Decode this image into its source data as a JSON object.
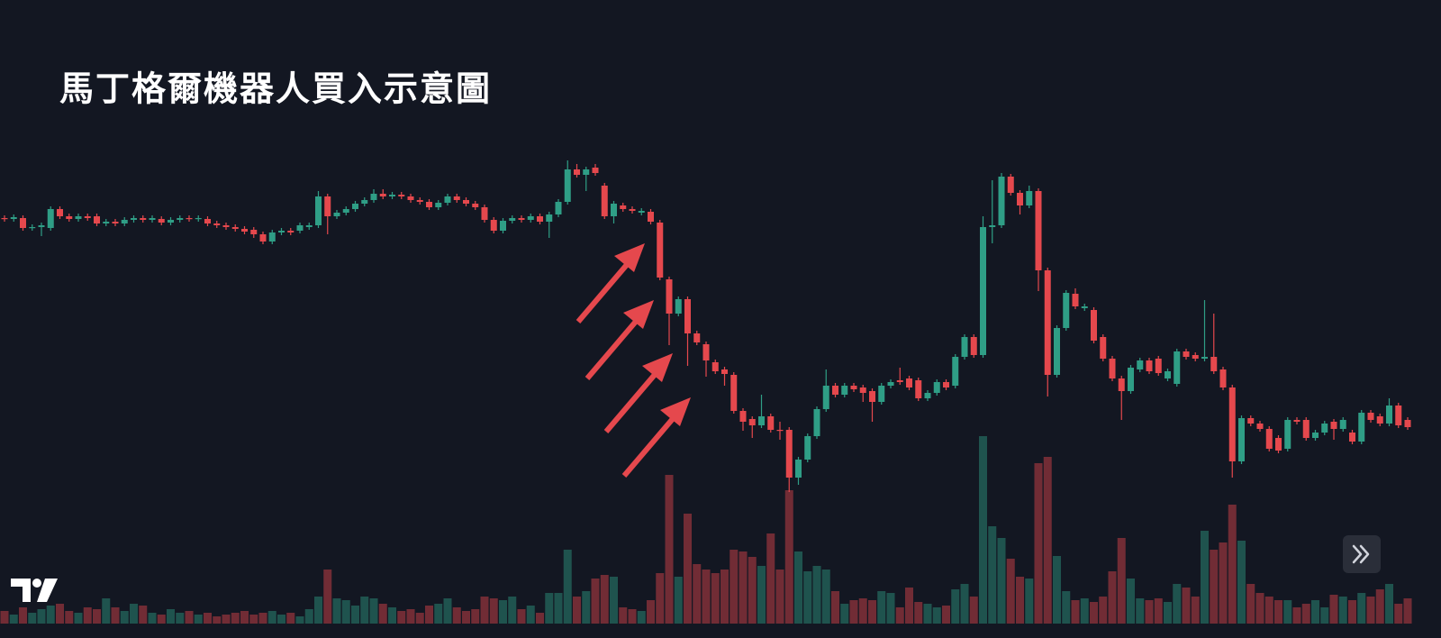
{
  "chart_data": {
    "type": "candlestick",
    "title": "馬丁格爾機器人買入示意圖",
    "up_color": "#2f9e86",
    "down_color": "#e5484d",
    "ylim": [
      0,
      708
    ],
    "y2lim": [
      0,
      250
    ],
    "open": [
      466,
      465,
      466,
      455,
      456,
      455,
      476,
      468,
      465,
      468,
      468,
      460,
      462,
      460,
      464,
      466,
      464,
      465,
      461,
      464,
      466,
      465,
      465,
      460,
      458,
      456,
      454,
      453,
      448,
      440,
      450,
      452,
      452,
      456,
      458,
      490,
      468,
      472,
      476,
      482,
      486,
      493,
      490,
      492,
      490,
      486,
      484,
      478,
      483,
      490,
      486,
      482,
      478,
      464,
      452,
      463,
      466,
      464,
      468,
      462,
      470,
      484,
      520,
      514,
      522,
      502,
      468,
      480,
      476,
      472,
      473,
      461,
      398,
      360,
      376,
      338,
      326,
      306,
      298,
      292,
      252,
      243,
      236,
      246,
      231,
      231,
      178,
      198,
      224,
      254,
      280,
      270,
      280,
      278,
      274,
      262,
      280,
      286,
      288,
      286,
      266,
      272,
      284,
      280,
      312,
      334,
      314,
      456,
      458,
      512,
      494,
      480,
      496,
      408,
      292,
      344,
      382,
      366,
      364,
      334,
      310,
      288,
      274,
      298,
      308,
      310,
      288,
      282,
      318,
      314,
      310,
      312,
      298,
      278,
      196,
      244,
      238,
      232,
      222,
      210,
      242,
      242,
      222,
      228,
      240,
      232,
      228,
      218,
      250,
      246,
      238,
      258,
      242
    ],
    "high": [
      469,
      470,
      469,
      459,
      461,
      479,
      479,
      471,
      471,
      471,
      471,
      465,
      465,
      467,
      469,
      469,
      469,
      468,
      467,
      469,
      469,
      469,
      468,
      463,
      461,
      459,
      457,
      456,
      451,
      453,
      455,
      455,
      461,
      461,
      496,
      493,
      475,
      479,
      485,
      489,
      498,
      498,
      495,
      495,
      493,
      489,
      487,
      486,
      493,
      493,
      489,
      485,
      481,
      467,
      466,
      469,
      469,
      471,
      471,
      473,
      487,
      530,
      526,
      523,
      526,
      505,
      485,
      483,
      479,
      477,
      476,
      464,
      401,
      379,
      379,
      341,
      329,
      309,
      301,
      295,
      255,
      246,
      270,
      249,
      240,
      234,
      201,
      227,
      257,
      298,
      283,
      283,
      283,
      281,
      277,
      283,
      287,
      300,
      291,
      289,
      275,
      287,
      287,
      315,
      337,
      337,
      468,
      508,
      516,
      515,
      497,
      502,
      499,
      411,
      347,
      386,
      388,
      371,
      367,
      337,
      313,
      291,
      303,
      311,
      311,
      313,
      299,
      321,
      321,
      317,
      375,
      360,
      301,
      281,
      247,
      247,
      241,
      235,
      225,
      245,
      245,
      245,
      231,
      241,
      243,
      245,
      231,
      253,
      253,
      249,
      266,
      261,
      245
    ],
    "low": [
      462,
      462,
      452,
      452,
      446,
      452,
      465,
      462,
      462,
      463,
      457,
      457,
      457,
      457,
      461,
      461,
      461,
      458,
      458,
      461,
      462,
      462,
      457,
      455,
      453,
      451,
      448,
      444,
      437,
      437,
      447,
      447,
      449,
      453,
      455,
      448,
      465,
      469,
      473,
      479,
      483,
      487,
      487,
      487,
      483,
      481,
      475,
      475,
      480,
      483,
      479,
      475,
      461,
      449,
      449,
      460,
      461,
      461,
      459,
      444,
      467,
      481,
      511,
      496,
      513,
      465,
      460,
      473,
      471,
      469,
      459,
      397,
      325,
      357,
      302,
      325,
      290,
      293,
      280,
      249,
      230,
      222,
      233,
      228,
      220,
      162,
      170,
      195,
      221,
      251,
      267,
      267,
      273,
      262,
      240,
      259,
      277,
      281,
      275,
      263,
      263,
      269,
      275,
      277,
      309,
      311,
      311,
      438,
      455,
      491,
      470,
      477,
      385,
      268,
      289,
      341,
      365,
      363,
      327,
      307,
      285,
      242,
      271,
      295,
      293,
      291,
      285,
      279,
      309,
      307,
      307,
      293,
      275,
      178,
      193,
      235,
      229,
      207,
      205,
      207,
      237,
      219,
      219,
      225,
      220,
      229,
      215,
      215,
      239,
      235,
      235,
      233,
      231
    ],
    "close": [
      465,
      467,
      455,
      456,
      458,
      476,
      468,
      465,
      468,
      466,
      460,
      462,
      460,
      464,
      466,
      464,
      466,
      461,
      464,
      466,
      465,
      466,
      460,
      458,
      456,
      454,
      451,
      448,
      440,
      450,
      452,
      450,
      458,
      458,
      490,
      468,
      472,
      476,
      482,
      486,
      493,
      490,
      492,
      490,
      486,
      484,
      478,
      483,
      490,
      486,
      482,
      478,
      464,
      452,
      463,
      466,
      464,
      468,
      462,
      470,
      484,
      520,
      514,
      520,
      516,
      468,
      482,
      476,
      474,
      474,
      462,
      400,
      360,
      376,
      338,
      328,
      308,
      296,
      293,
      252,
      240,
      236,
      246,
      231,
      230,
      178,
      198,
      224,
      254,
      280,
      270,
      280,
      276,
      272,
      262,
      280,
      284,
      284,
      278,
      266,
      272,
      284,
      278,
      312,
      334,
      314,
      456,
      458,
      512,
      494,
      480,
      496,
      408,
      292,
      344,
      383,
      368,
      368,
      330,
      310,
      288,
      274,
      300,
      308,
      296,
      294,
      296,
      318,
      312,
      310,
      312,
      296,
      278,
      196,
      244,
      238,
      232,
      210,
      208,
      242,
      240,
      222,
      228,
      238,
      232,
      242,
      218,
      250,
      242,
      238,
      258,
      236,
      234
    ],
    "volume": [
      14,
      10,
      18,
      12,
      16,
      20,
      22,
      14,
      12,
      18,
      16,
      28,
      18,
      14,
      22,
      20,
      12,
      10,
      16,
      12,
      14,
      10,
      12,
      8,
      10,
      12,
      14,
      10,
      12,
      14,
      10,
      12,
      8,
      16,
      30,
      60,
      28,
      26,
      20,
      30,
      28,
      22,
      18,
      14,
      16,
      12,
      20,
      22,
      28,
      18,
      14,
      16,
      30,
      28,
      26,
      30,
      16,
      20,
      12,
      34,
      34,
      82,
      30,
      36,
      50,
      54,
      52,
      18,
      16,
      14,
      26,
      56,
      165,
      52,
      122,
      66,
      60,
      56,
      60,
      82,
      80,
      74,
      64,
      100,
      60,
      148,
      80,
      58,
      64,
      60,
      36,
      22,
      26,
      28,
      26,
      36,
      34,
      18,
      40,
      24,
      22,
      18,
      20,
      38,
      44,
      30,
      208,
      108,
      95,
      72,
      52,
      50,
      178,
      185,
      75,
      36,
      26,
      28,
      24,
      30,
      58,
      95,
      50,
      28,
      26,
      28,
      24,
      44,
      40,
      30,
      103,
      82,
      90,
      132,
      92,
      44,
      34,
      30,
      26,
      26,
      18,
      22,
      26,
      18,
      32,
      30,
      26,
      34,
      30,
      38,
      44,
      22,
      28
    ]
  }
}
